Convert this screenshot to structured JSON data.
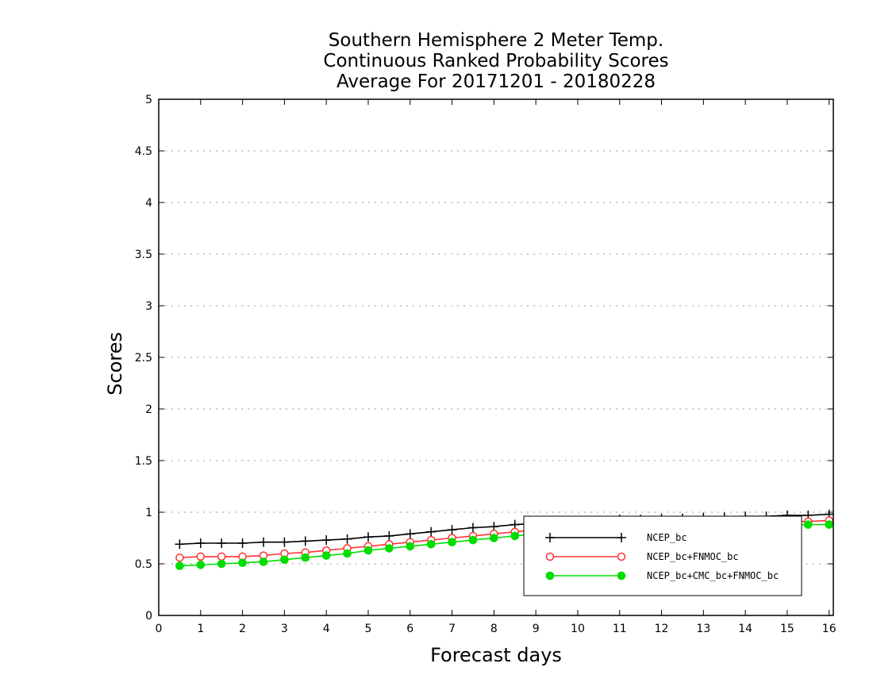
{
  "chart_data": {
    "type": "line",
    "title": [
      "Southern Hemisphere 2 Meter Temp.",
      "Continuous Ranked Probability Scores",
      "Average For 20171201 - 20180228"
    ],
    "xlabel": "Forecast days",
    "ylabel": "Scores",
    "xlim": [
      0,
      16.1
    ],
    "ylim": [
      0,
      5
    ],
    "xticks": [
      0,
      1,
      2,
      3,
      4,
      5,
      6,
      7,
      8,
      9,
      10,
      11,
      12,
      13,
      14,
      15,
      16
    ],
    "yticks": [
      0,
      0.5,
      1,
      1.5,
      2,
      2.5,
      3,
      3.5,
      4,
      4.5,
      5
    ],
    "ytick_labels": [
      "0",
      "0.5",
      "1",
      "1.5",
      "2",
      "2.5",
      "3",
      "3.5",
      "4",
      "4.5",
      "5"
    ],
    "grid": "horizontal dotted",
    "legend_position": "bottom-right",
    "x": [
      0.5,
      1,
      1.5,
      2,
      2.5,
      3,
      3.5,
      4,
      4.5,
      5,
      5.5,
      6,
      6.5,
      7,
      7.5,
      8,
      8.5,
      9,
      9.5,
      10,
      10.5,
      11,
      11.5,
      12,
      12.5,
      13,
      13.5,
      14,
      14.5,
      15,
      15.5,
      16
    ],
    "series": [
      {
        "name": "NCEP_bc",
        "color": "#000000",
        "marker": "plus",
        "values": [
          0.69,
          0.7,
          0.7,
          0.7,
          0.71,
          0.71,
          0.72,
          0.73,
          0.74,
          0.76,
          0.77,
          0.79,
          0.81,
          0.83,
          0.85,
          0.86,
          0.88,
          0.89,
          0.9,
          0.91,
          0.92,
          0.93,
          0.93,
          0.94,
          0.94,
          0.95,
          0.95,
          0.96,
          0.96,
          0.97,
          0.97,
          0.98
        ]
      },
      {
        "name": "NCEP_bc+FNMOC_bc",
        "color": "#ff3333",
        "marker": "open-circle",
        "values": [
          0.56,
          0.57,
          0.57,
          0.57,
          0.58,
          0.6,
          0.61,
          0.63,
          0.65,
          0.67,
          0.69,
          0.71,
          0.73,
          0.75,
          0.77,
          0.79,
          0.81,
          0.83,
          0.84,
          0.85,
          0.86,
          0.87,
          0.87,
          0.88,
          0.88,
          0.89,
          0.89,
          0.9,
          0.9,
          0.91,
          0.91,
          0.92
        ]
      },
      {
        "name": "NCEP_bc+CMC_bc+FNMOC_bc",
        "color": "#00dd00",
        "marker": "filled-circle",
        "values": [
          0.48,
          0.49,
          0.5,
          0.51,
          0.52,
          0.54,
          0.56,
          0.58,
          0.6,
          0.63,
          0.65,
          0.67,
          0.69,
          0.71,
          0.73,
          0.75,
          0.77,
          0.79,
          0.8,
          0.81,
          0.82,
          0.83,
          0.84,
          0.84,
          0.85,
          0.85,
          0.86,
          0.86,
          0.87,
          0.87,
          0.88,
          0.88
        ]
      }
    ]
  }
}
